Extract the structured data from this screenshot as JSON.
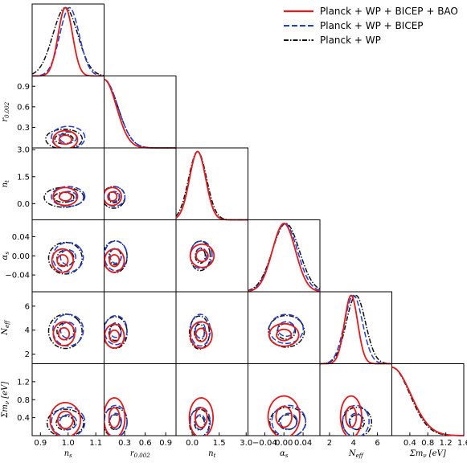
{
  "colors": {
    "pwb_bao": "#e41a1c",
    "pwb": "#1f3fd1",
    "pw": "#111111",
    "frame": "#000000",
    "background": "#ffffff"
  },
  "legend": [
    {
      "key": "pwb_bao",
      "label": "Planck + WP + BICEP + BAO",
      "style": "solid"
    },
    {
      "key": "pwb",
      "label": "Planck + WP + BICEP",
      "style": "dashed"
    },
    {
      "key": "pw",
      "label": "Planck + WP",
      "style": "dashdot"
    }
  ],
  "chart_data": {
    "type": "triangle-corner-plot",
    "legend_placement": "top-right",
    "parameters": [
      {
        "key": "ns",
        "label": "n_s",
        "xticks": [
          "0.9",
          "1.0",
          "1.1"
        ],
        "xtick_values": [
          0.9,
          1.0,
          1.1
        ],
        "yticks": [],
        "ytick_values": [],
        "range": [
          0.87,
          1.13
        ]
      },
      {
        "key": "r",
        "label": "r_0.002",
        "xticks": [
          "0.3",
          "0.6",
          "0.9"
        ],
        "xtick_values": [
          0.3,
          0.6,
          0.9
        ],
        "yticks": [
          "0.3",
          "0.6",
          "0.9"
        ],
        "ytick_values": [
          0.3,
          0.6,
          0.9
        ],
        "range": [
          0.0,
          1.05
        ]
      },
      {
        "key": "nt",
        "label": "n_t",
        "xticks": [
          "0.0",
          "1.5",
          "3.0"
        ],
        "xtick_values": [
          0.0,
          1.5,
          3.0
        ],
        "yticks": [
          "0.0",
          "1.5",
          "3.0"
        ],
        "ytick_values": [
          0.0,
          1.5,
          3.0
        ],
        "range": [
          -0.9,
          3.1
        ]
      },
      {
        "key": "as",
        "label": "α_s",
        "xticks": [
          "−0.04",
          "0.00",
          "0.04"
        ],
        "xtick_values": [
          -0.04,
          0.0,
          0.04
        ],
        "yticks": [
          "−0.04",
          "0.00",
          "0.04"
        ],
        "ytick_values": [
          -0.04,
          0.0,
          0.04
        ],
        "range": [
          -0.075,
          0.075
        ]
      },
      {
        "key": "neff",
        "label": "N_eff",
        "xticks": [
          "2",
          "4",
          "6"
        ],
        "xtick_values": [
          2,
          4,
          6
        ],
        "yticks": [
          "2",
          "4",
          "6"
        ],
        "ytick_values": [
          2,
          4,
          6
        ],
        "range": [
          1.2,
          7.2
        ]
      },
      {
        "key": "mnu",
        "label": "Σm_ν [eV]",
        "xticks": [
          "0.4",
          "0.8",
          "1.2",
          "1.6"
        ],
        "xtick_values": [
          0.4,
          0.8,
          1.2,
          1.6
        ],
        "yticks": [
          "0.4",
          "0.8",
          "1.2"
        ],
        "ytick_values": [
          0.4,
          0.8,
          1.2
        ],
        "range": [
          0.0,
          1.6
        ]
      }
    ],
    "marginals": {
      "ns": {
        "pwb_bao": [
          0.99,
          0.026
        ],
        "pwb": [
          1.005,
          0.035
        ],
        "pw": [
          0.99,
          0.045
        ]
      },
      "r": {
        "pwb_bao": [
          0.0,
          0.18
        ],
        "pwb": [
          0.0,
          0.2
        ],
        "pw": [
          0.0,
          0.2
        ]
      },
      "nt": {
        "pwb_bao": [
          0.3,
          0.45
        ],
        "pwb": [
          0.3,
          0.45
        ],
        "pw": [
          0.3,
          0.5
        ]
      },
      "as": {
        "pwb_bao": [
          0.0,
          0.024
        ],
        "pwb": [
          0.002,
          0.026
        ],
        "pw": [
          0.004,
          0.028
        ]
      },
      "neff": {
        "pwb_bao": [
          3.8,
          0.55
        ],
        "pwb": [
          4.0,
          0.75
        ],
        "pw": [
          4.2,
          0.8
        ]
      },
      "mnu": {
        "pwb_bao": [
          0.0,
          0.42
        ],
        "pwb": [
          0.0,
          0.42
        ],
        "pw": [
          0.0,
          0.4
        ]
      }
    },
    "contours": [
      {
        "pair": [
          "ns",
          "r"
        ],
        "pwb_bao": {
          "c": [
            0.99,
            0.12
          ],
          "s": [
            0.04,
            0.12
          ],
          "rot": 0
        },
        "pwb": {
          "c": [
            1.0,
            0.15
          ],
          "s": [
            0.055,
            0.15
          ],
          "rot": 0
        },
        "pw": {
          "c": [
            0.985,
            0.13
          ],
          "s": [
            0.06,
            0.13
          ],
          "rot": 0
        }
      },
      {
        "pair": [
          "ns",
          "nt"
        ],
        "pwb_bao": {
          "c": [
            0.99,
            0.4
          ],
          "s": [
            0.04,
            0.45
          ],
          "rot": 0
        },
        "pwb": {
          "c": [
            1.0,
            0.4
          ],
          "s": [
            0.055,
            0.5
          ],
          "rot": 0
        },
        "pw": {
          "c": [
            0.985,
            0.35
          ],
          "s": [
            0.065,
            0.5
          ],
          "rot": 0
        }
      },
      {
        "pair": [
          "r",
          "nt"
        ],
        "pwb_bao": {
          "c": [
            0.12,
            0.4
          ],
          "s": [
            0.12,
            0.45
          ],
          "rot": -0.5
        },
        "pwb": {
          "c": [
            0.15,
            0.4
          ],
          "s": [
            0.14,
            0.5
          ],
          "rot": -0.5
        },
        "pw": {
          "c": [
            0.14,
            0.35
          ],
          "s": [
            0.15,
            0.55
          ],
          "rot": -0.5
        }
      },
      {
        "pair": [
          "ns",
          "as"
        ],
        "pwb_bao": {
          "c": [
            0.98,
            -0.01
          ],
          "s": [
            0.035,
            0.022
          ],
          "rot": 0.7
        },
        "pwb": {
          "c": [
            1.0,
            -0.003
          ],
          "s": [
            0.05,
            0.028
          ],
          "rot": 0.7
        },
        "pw": {
          "c": [
            0.99,
            -0.005
          ],
          "s": [
            0.055,
            0.03
          ],
          "rot": 0.7
        }
      },
      {
        "pair": [
          "r",
          "as"
        ],
        "pwb_bao": {
          "c": [
            0.15,
            -0.01
          ],
          "s": [
            0.13,
            0.022
          ],
          "rot": 0.4
        },
        "pwb": {
          "c": [
            0.17,
            0.0
          ],
          "s": [
            0.15,
            0.028
          ],
          "rot": 0.4
        },
        "pw": {
          "c": [
            0.16,
            -0.002
          ],
          "s": [
            0.16,
            0.03
          ],
          "rot": 0.4
        }
      },
      {
        "pair": [
          "nt",
          "as"
        ],
        "pwb_bao": {
          "c": [
            0.55,
            0.0
          ],
          "s": [
            0.6,
            0.022
          ],
          "rot": 0.2
        },
        "pwb": {
          "c": [
            0.5,
            0.002
          ],
          "s": [
            0.55,
            0.026
          ],
          "rot": 0.2
        },
        "pw": {
          "c": [
            0.45,
            0.0
          ],
          "s": [
            0.5,
            0.028
          ],
          "rot": 0.2
        }
      },
      {
        "pair": [
          "ns",
          "neff"
        ],
        "pwb_bao": {
          "c": [
            0.985,
            3.7
          ],
          "s": [
            0.035,
            0.9
          ],
          "rot": 0.75
        },
        "pwb": {
          "c": [
            1.0,
            4.0
          ],
          "s": [
            0.05,
            1.2
          ],
          "rot": 0.75
        },
        "pw": {
          "c": [
            0.99,
            3.9
          ],
          "s": [
            0.055,
            1.3
          ],
          "rot": 0.75
        }
      },
      {
        "pair": [
          "r",
          "neff"
        ],
        "pwb_bao": {
          "c": [
            0.15,
            3.5
          ],
          "s": [
            0.13,
            0.9
          ],
          "rot": 0.3
        },
        "pwb": {
          "c": [
            0.17,
            4.0
          ],
          "s": [
            0.15,
            1.1
          ],
          "rot": 0.3
        },
        "pw": {
          "c": [
            0.16,
            3.8
          ],
          "s": [
            0.16,
            1.2
          ],
          "rot": 0.3
        }
      },
      {
        "pair": [
          "nt",
          "neff"
        ],
        "pwb_bao": {
          "c": [
            0.5,
            3.6
          ],
          "s": [
            0.55,
            1.0
          ],
          "rot": 0.1
        },
        "pwb": {
          "c": [
            0.45,
            4.0
          ],
          "s": [
            0.5,
            1.2
          ],
          "rot": 0.1
        },
        "pw": {
          "c": [
            0.4,
            3.8
          ],
          "s": [
            0.5,
            1.25
          ],
          "rot": 0.1
        }
      },
      {
        "pair": [
          "as",
          "neff"
        ],
        "pwb_bao": {
          "c": [
            0.0,
            3.6
          ],
          "s": [
            0.028,
            0.85
          ],
          "rot": 0.6
        },
        "pwb": {
          "c": [
            0.005,
            4.1
          ],
          "s": [
            0.032,
            1.1
          ],
          "rot": 0.6
        },
        "pw": {
          "c": [
            0.005,
            3.9
          ],
          "s": [
            0.034,
            1.2
          ],
          "rot": 0.6
        }
      },
      {
        "pair": [
          "ns",
          "mnu"
        ],
        "pwb_bao": {
          "c": [
            0.99,
            0.35
          ],
          "s": [
            0.05,
            0.35
          ],
          "rot": 0.3
        },
        "pwb": {
          "c": [
            1.0,
            0.3
          ],
          "s": [
            0.055,
            0.3
          ],
          "rot": 0.3
        },
        "pw": {
          "c": [
            0.99,
            0.28
          ],
          "s": [
            0.06,
            0.28
          ],
          "rot": 0.3
        }
      },
      {
        "pair": [
          "r",
          "mnu"
        ],
        "pwb_bao": {
          "c": [
            0.15,
            0.4
          ],
          "s": [
            0.14,
            0.4
          ],
          "rot": -0.2
        },
        "pwb": {
          "c": [
            0.17,
            0.32
          ],
          "s": [
            0.15,
            0.32
          ],
          "rot": -0.2
        },
        "pw": {
          "c": [
            0.16,
            0.3
          ],
          "s": [
            0.16,
            0.3
          ],
          "rot": -0.2
        }
      },
      {
        "pair": [
          "nt",
          "mnu"
        ],
        "pwb_bao": {
          "c": [
            0.5,
            0.4
          ],
          "s": [
            0.6,
            0.4
          ],
          "rot": 0.2
        },
        "pwb": {
          "c": [
            0.45,
            0.3
          ],
          "s": [
            0.5,
            0.3
          ],
          "rot": 0.2
        },
        "pw": {
          "c": [
            0.4,
            0.28
          ],
          "s": [
            0.5,
            0.28
          ],
          "rot": 0.2
        }
      },
      {
        "pair": [
          "as",
          "mnu"
        ],
        "pwb_bao": {
          "c": [
            0.0,
            0.42
          ],
          "s": [
            0.03,
            0.42
          ],
          "rot": 0.3
        },
        "pwb": {
          "c": [
            0.01,
            0.32
          ],
          "s": [
            0.032,
            0.32
          ],
          "rot": 0.3
        },
        "pw": {
          "c": [
            0.008,
            0.3
          ],
          "s": [
            0.034,
            0.3
          ],
          "rot": 0.3
        }
      },
      {
        "pair": [
          "neff",
          "mnu"
        ],
        "pwb_bao": {
          "c": [
            3.8,
            0.42
          ],
          "s": [
            0.8,
            0.42
          ],
          "rot": 0.5
        },
        "pwb": {
          "c": [
            4.2,
            0.32
          ],
          "s": [
            1.0,
            0.32
          ],
          "rot": 0.5
        },
        "pw": {
          "c": [
            4.3,
            0.3
          ],
          "s": [
            1.1,
            0.3
          ],
          "rot": 0.5
        }
      }
    ]
  }
}
